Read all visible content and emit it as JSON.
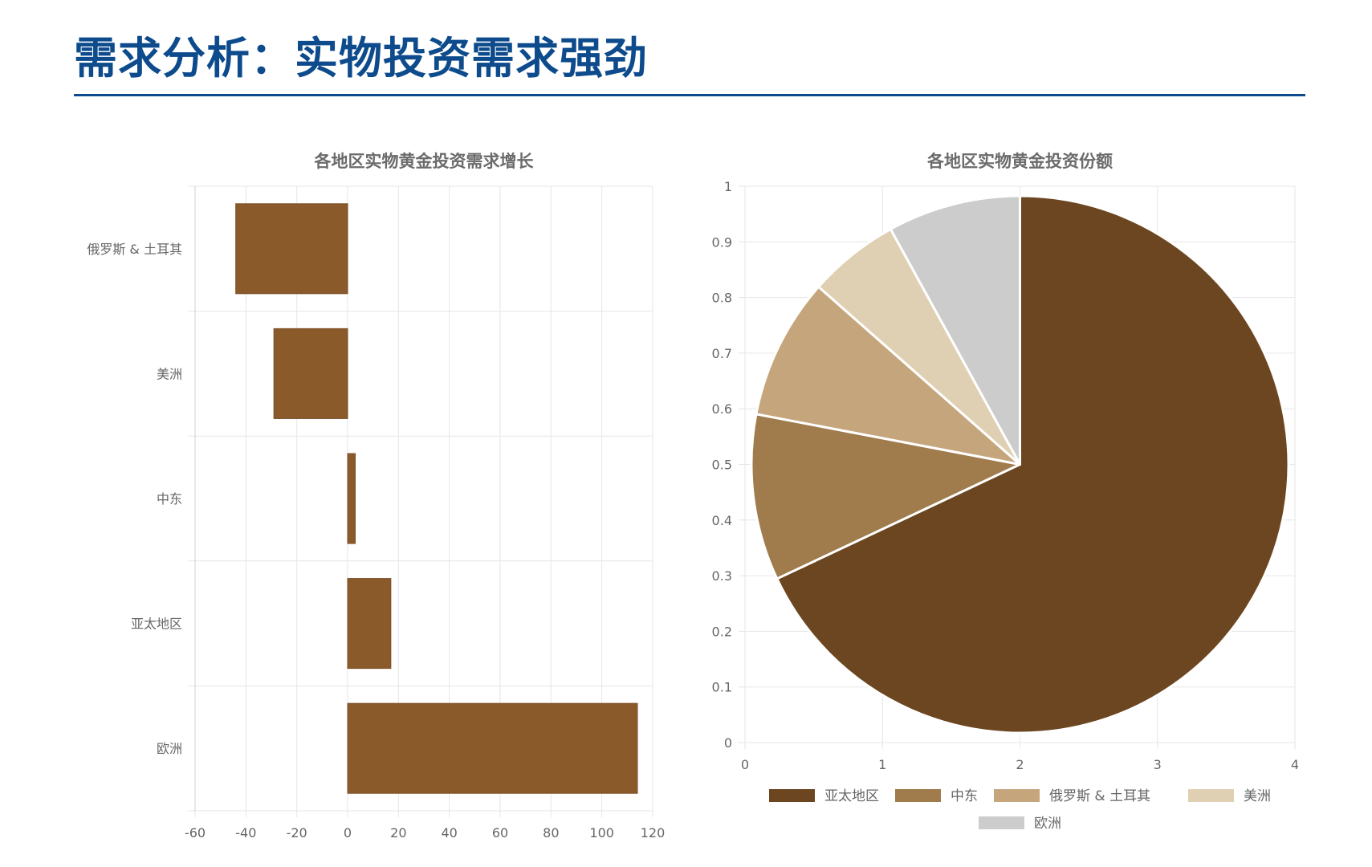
{
  "page": {
    "title": "需求分析：实物投资需求强劲"
  },
  "colors": {
    "title": "#0d4b8c",
    "bar": "#8b5a2b",
    "grid": "#e6e6e6",
    "axis": "#d0d0d0"
  },
  "chart_data": [
    {
      "type": "bar",
      "orientation": "horizontal",
      "title": "各地区实物黄金投资需求增长",
      "categories": [
        "俄罗斯 & 土耳其",
        "美洲",
        "中东",
        "亚太地区",
        "欧洲"
      ],
      "values": [
        -44,
        -29,
        3,
        17,
        114
      ],
      "xlim": [
        -60,
        120
      ],
      "xticks": [
        "-60",
        "-40",
        "-20",
        "0",
        "20",
        "40",
        "60",
        "80",
        "100",
        "120"
      ],
      "xlabel": "",
      "ylabel": "",
      "grid": true,
      "color": "#8b5a2b"
    },
    {
      "type": "pie",
      "title": "各地区实物黄金投资份额",
      "labels": [
        "亚太地区",
        "中东",
        "俄罗斯 & 土耳其",
        "美洲",
        "欧洲"
      ],
      "values": [
        68,
        10,
        8.5,
        5.5,
        8
      ],
      "colors": [
        "#6b4620",
        "#a07c4d",
        "#c5a67c",
        "#e0d0b3",
        "#cccccc"
      ],
      "xticks": [
        "0",
        "1",
        "2",
        "3",
        "4"
      ],
      "yticks": [
        "0",
        "0.1",
        "0.2",
        "0.3",
        "0.4",
        "0.5",
        "0.6",
        "0.7",
        "0.8",
        "0.9",
        "1"
      ],
      "grid": true,
      "legend_position": "bottom"
    }
  ]
}
